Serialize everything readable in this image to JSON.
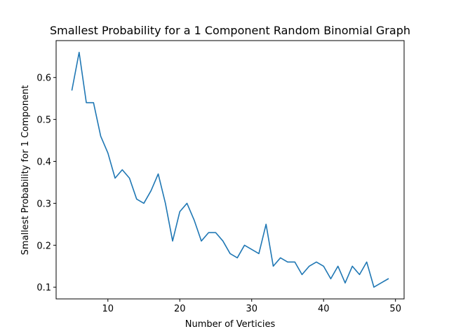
{
  "chart_data": {
    "type": "line",
    "title": "Smallest Probability for a 1 Component Random Binomial Graph",
    "xlabel": "Number of Verticies",
    "ylabel": "Smallest Probability for 1 Component",
    "xlim": [
      2.8,
      51.2
    ],
    "ylim": [
      0.072,
      0.688
    ],
    "xticks": [
      10,
      20,
      30,
      40,
      50
    ],
    "yticks": [
      0.1,
      0.2,
      0.3,
      0.4,
      0.5,
      0.6
    ],
    "grid": false,
    "series": [
      {
        "color": "#1f77b4",
        "x": [
          5,
          6,
          7,
          8,
          9,
          10,
          11,
          12,
          13,
          14,
          15,
          16,
          17,
          18,
          19,
          20,
          21,
          22,
          23,
          24,
          25,
          26,
          27,
          28,
          29,
          30,
          31,
          32,
          33,
          34,
          35,
          36,
          37,
          38,
          39,
          40,
          41,
          42,
          43,
          44,
          45,
          46,
          47,
          48,
          49
        ],
        "y": [
          0.57,
          0.66,
          0.54,
          0.54,
          0.46,
          0.42,
          0.36,
          0.38,
          0.36,
          0.31,
          0.3,
          0.33,
          0.37,
          0.3,
          0.21,
          0.28,
          0.3,
          0.26,
          0.21,
          0.23,
          0.23,
          0.21,
          0.18,
          0.17,
          0.2,
          0.19,
          0.18,
          0.25,
          0.15,
          0.17,
          0.16,
          0.16,
          0.13,
          0.15,
          0.16,
          0.15,
          0.12,
          0.15,
          0.11,
          0.15,
          0.13,
          0.16,
          0.1,
          0.11,
          0.12
        ]
      }
    ]
  }
}
